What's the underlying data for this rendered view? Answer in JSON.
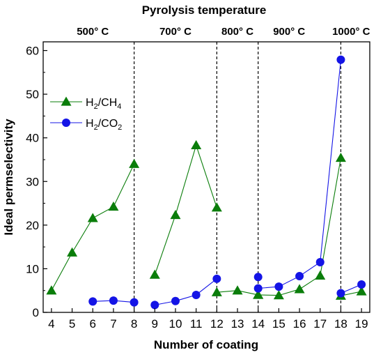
{
  "chart_data": {
    "type": "line",
    "title": "Pyrolysis temperature",
    "xlabel": "Number of coating",
    "ylabel": "Ideal permselectivity",
    "xlim": [
      3.6,
      19.4
    ],
    "ylim": [
      0,
      62
    ],
    "xticks": [
      4,
      5,
      6,
      7,
      8,
      9,
      10,
      11,
      12,
      13,
      14,
      15,
      16,
      17,
      18,
      19
    ],
    "yticks": [
      0,
      10,
      20,
      30,
      40,
      50,
      60
    ],
    "grid": false,
    "legend_position": "upper-left",
    "temperature_bands": [
      {
        "label": "500° C",
        "center_x": 6
      },
      {
        "label": "700° C",
        "center_x": 10
      },
      {
        "label": "800° C",
        "center_x": 13
      },
      {
        "label": "900° C",
        "center_x": 15.5
      },
      {
        "label": "1000° C",
        "center_x": 18.5
      }
    ],
    "separators": [
      8,
      12,
      14,
      18
    ],
    "series": [
      {
        "name": "H2/CH4",
        "legend_main": "H",
        "legend_sub1": "2",
        "legend_mid": "/CH",
        "legend_sub2": "4",
        "color": "#0a7d0a",
        "marker": "triangle",
        "segments": [
          [
            [
              4,
              5.0
            ],
            [
              5,
              13.7
            ],
            [
              6,
              21.6
            ],
            [
              7,
              24.2
            ],
            [
              8,
              34.0
            ]
          ],
          [
            [
              9,
              8.6
            ],
            [
              10,
              22.3
            ],
            [
              11,
              38.3
            ],
            [
              12,
              24.0
            ]
          ],
          [
            [
              12,
              4.6
            ],
            [
              13,
              5.0
            ],
            [
              14,
              4.0
            ]
          ],
          [
            [
              14,
              4.0
            ],
            [
              15,
              3.9
            ],
            [
              16,
              5.3
            ],
            [
              17,
              8.4
            ],
            [
              18,
              35.4
            ]
          ],
          [
            [
              18,
              3.8
            ],
            [
              19,
              4.8
            ]
          ]
        ]
      },
      {
        "name": "H2/CO2",
        "legend_main": "H",
        "legend_sub1": "2",
        "legend_mid": "/CO",
        "legend_sub2": "2",
        "color": "#1414e6",
        "marker": "circle",
        "segments": [
          [
            [
              6,
              2.5
            ],
            [
              7,
              2.7
            ],
            [
              8,
              2.3
            ]
          ],
          [
            [
              9,
              1.7
            ],
            [
              10,
              2.6
            ],
            [
              11,
              4.0
            ],
            [
              12,
              7.7
            ]
          ],
          [
            [
              14,
              8.1
            ]
          ],
          [
            [
              14,
              5.5
            ],
            [
              15,
              5.9
            ],
            [
              16,
              8.3
            ],
            [
              17,
              11.5
            ],
            [
              18,
              57.9
            ]
          ],
          [
            [
              18,
              4.4
            ],
            [
              19,
              6.4
            ]
          ]
        ]
      }
    ]
  }
}
